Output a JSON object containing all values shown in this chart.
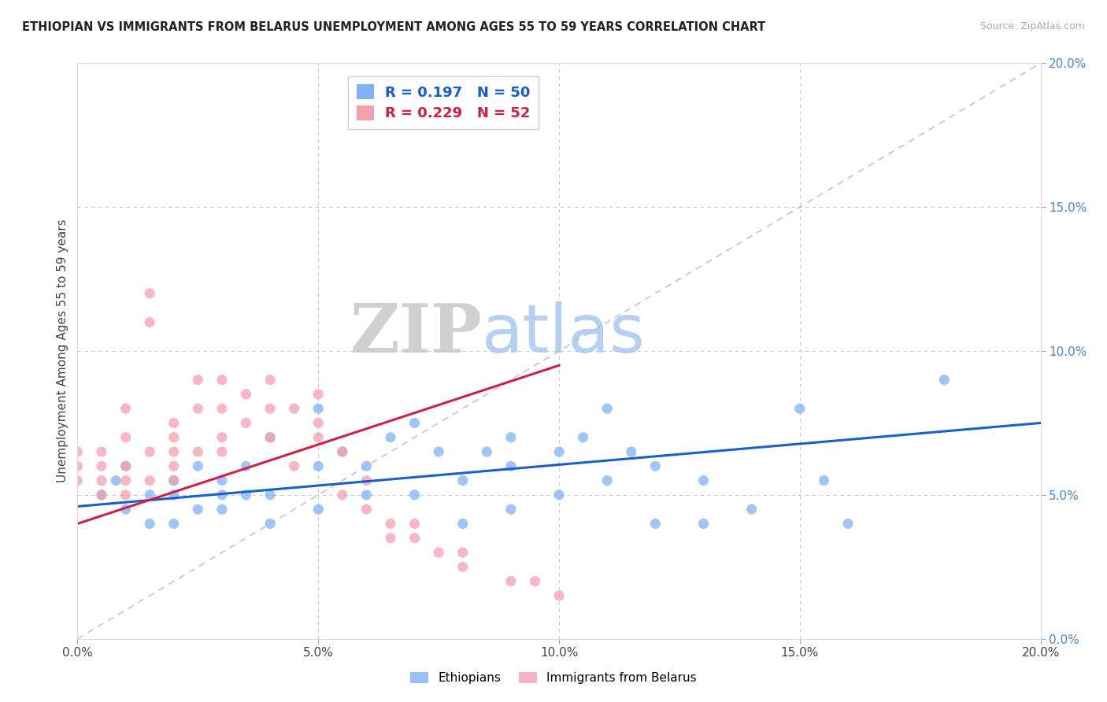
{
  "title": "ETHIOPIAN VS IMMIGRANTS FROM BELARUS UNEMPLOYMENT AMONG AGES 55 TO 59 YEARS CORRELATION CHART",
  "source": "Source: ZipAtlas.com",
  "ylabel": "Unemployment Among Ages 55 to 59 years",
  "xlim": [
    0.0,
    0.2
  ],
  "ylim": [
    0.0,
    0.2
  ],
  "xticks": [
    0.0,
    0.05,
    0.1,
    0.15,
    0.2
  ],
  "yticks": [
    0.0,
    0.05,
    0.1,
    0.15,
    0.2
  ],
  "xtick_labels": [
    "0.0%",
    "5.0%",
    "10.0%",
    "15.0%",
    "20.0%"
  ],
  "ytick_labels_right": [
    "0.0%",
    "5.0%",
    "10.0%",
    "15.0%",
    "20.0%"
  ],
  "blue_R": 0.197,
  "blue_N": 50,
  "pink_R": 0.229,
  "pink_N": 52,
  "blue_color": "#7FB3F5",
  "pink_color": "#F5A0B0",
  "blue_trend_color": "#1A5FCC",
  "pink_trend_color": "#CC2244",
  "ref_line_color": "#BBBBBB",
  "grid_color": "#CCCCCC",
  "background_color": "#FFFFFF",
  "blue_x": [
    0.005,
    0.008,
    0.01,
    0.01,
    0.015,
    0.015,
    0.02,
    0.02,
    0.02,
    0.025,
    0.025,
    0.03,
    0.03,
    0.03,
    0.035,
    0.035,
    0.04,
    0.04,
    0.04,
    0.05,
    0.05,
    0.05,
    0.055,
    0.06,
    0.06,
    0.065,
    0.07,
    0.07,
    0.075,
    0.08,
    0.08,
    0.085,
    0.09,
    0.09,
    0.09,
    0.1,
    0.1,
    0.105,
    0.11,
    0.11,
    0.115,
    0.12,
    0.12,
    0.13,
    0.13,
    0.14,
    0.15,
    0.155,
    0.16,
    0.18
  ],
  "blue_y": [
    0.05,
    0.055,
    0.045,
    0.06,
    0.04,
    0.05,
    0.05,
    0.04,
    0.055,
    0.06,
    0.045,
    0.05,
    0.055,
    0.045,
    0.06,
    0.05,
    0.07,
    0.05,
    0.04,
    0.08,
    0.06,
    0.045,
    0.065,
    0.06,
    0.05,
    0.07,
    0.075,
    0.05,
    0.065,
    0.04,
    0.055,
    0.065,
    0.06,
    0.045,
    0.07,
    0.065,
    0.05,
    0.07,
    0.08,
    0.055,
    0.065,
    0.04,
    0.06,
    0.04,
    0.055,
    0.045,
    0.08,
    0.055,
    0.04,
    0.09
  ],
  "pink_x": [
    0.0,
    0.0,
    0.0,
    0.005,
    0.005,
    0.005,
    0.005,
    0.01,
    0.01,
    0.01,
    0.01,
    0.01,
    0.015,
    0.015,
    0.015,
    0.015,
    0.02,
    0.02,
    0.02,
    0.02,
    0.02,
    0.025,
    0.025,
    0.025,
    0.03,
    0.03,
    0.03,
    0.03,
    0.035,
    0.035,
    0.04,
    0.04,
    0.04,
    0.045,
    0.045,
    0.05,
    0.05,
    0.05,
    0.055,
    0.055,
    0.06,
    0.06,
    0.065,
    0.065,
    0.07,
    0.07,
    0.075,
    0.08,
    0.08,
    0.09,
    0.095,
    0.1
  ],
  "pink_y": [
    0.055,
    0.06,
    0.065,
    0.05,
    0.055,
    0.06,
    0.065,
    0.05,
    0.055,
    0.07,
    0.08,
    0.06,
    0.055,
    0.065,
    0.11,
    0.12,
    0.055,
    0.065,
    0.07,
    0.075,
    0.06,
    0.065,
    0.08,
    0.09,
    0.065,
    0.07,
    0.08,
    0.09,
    0.075,
    0.085,
    0.07,
    0.08,
    0.09,
    0.06,
    0.08,
    0.07,
    0.075,
    0.085,
    0.05,
    0.065,
    0.045,
    0.055,
    0.035,
    0.04,
    0.035,
    0.04,
    0.03,
    0.025,
    0.03,
    0.02,
    0.02,
    0.015
  ],
  "blue_trend_x0": 0.0,
  "blue_trend_y0": 0.046,
  "blue_trend_x1": 0.2,
  "blue_trend_y1": 0.075,
  "pink_trend_x0": 0.0,
  "pink_trend_y0": 0.04,
  "pink_trend_x1": 0.1,
  "pink_trend_y1": 0.095
}
